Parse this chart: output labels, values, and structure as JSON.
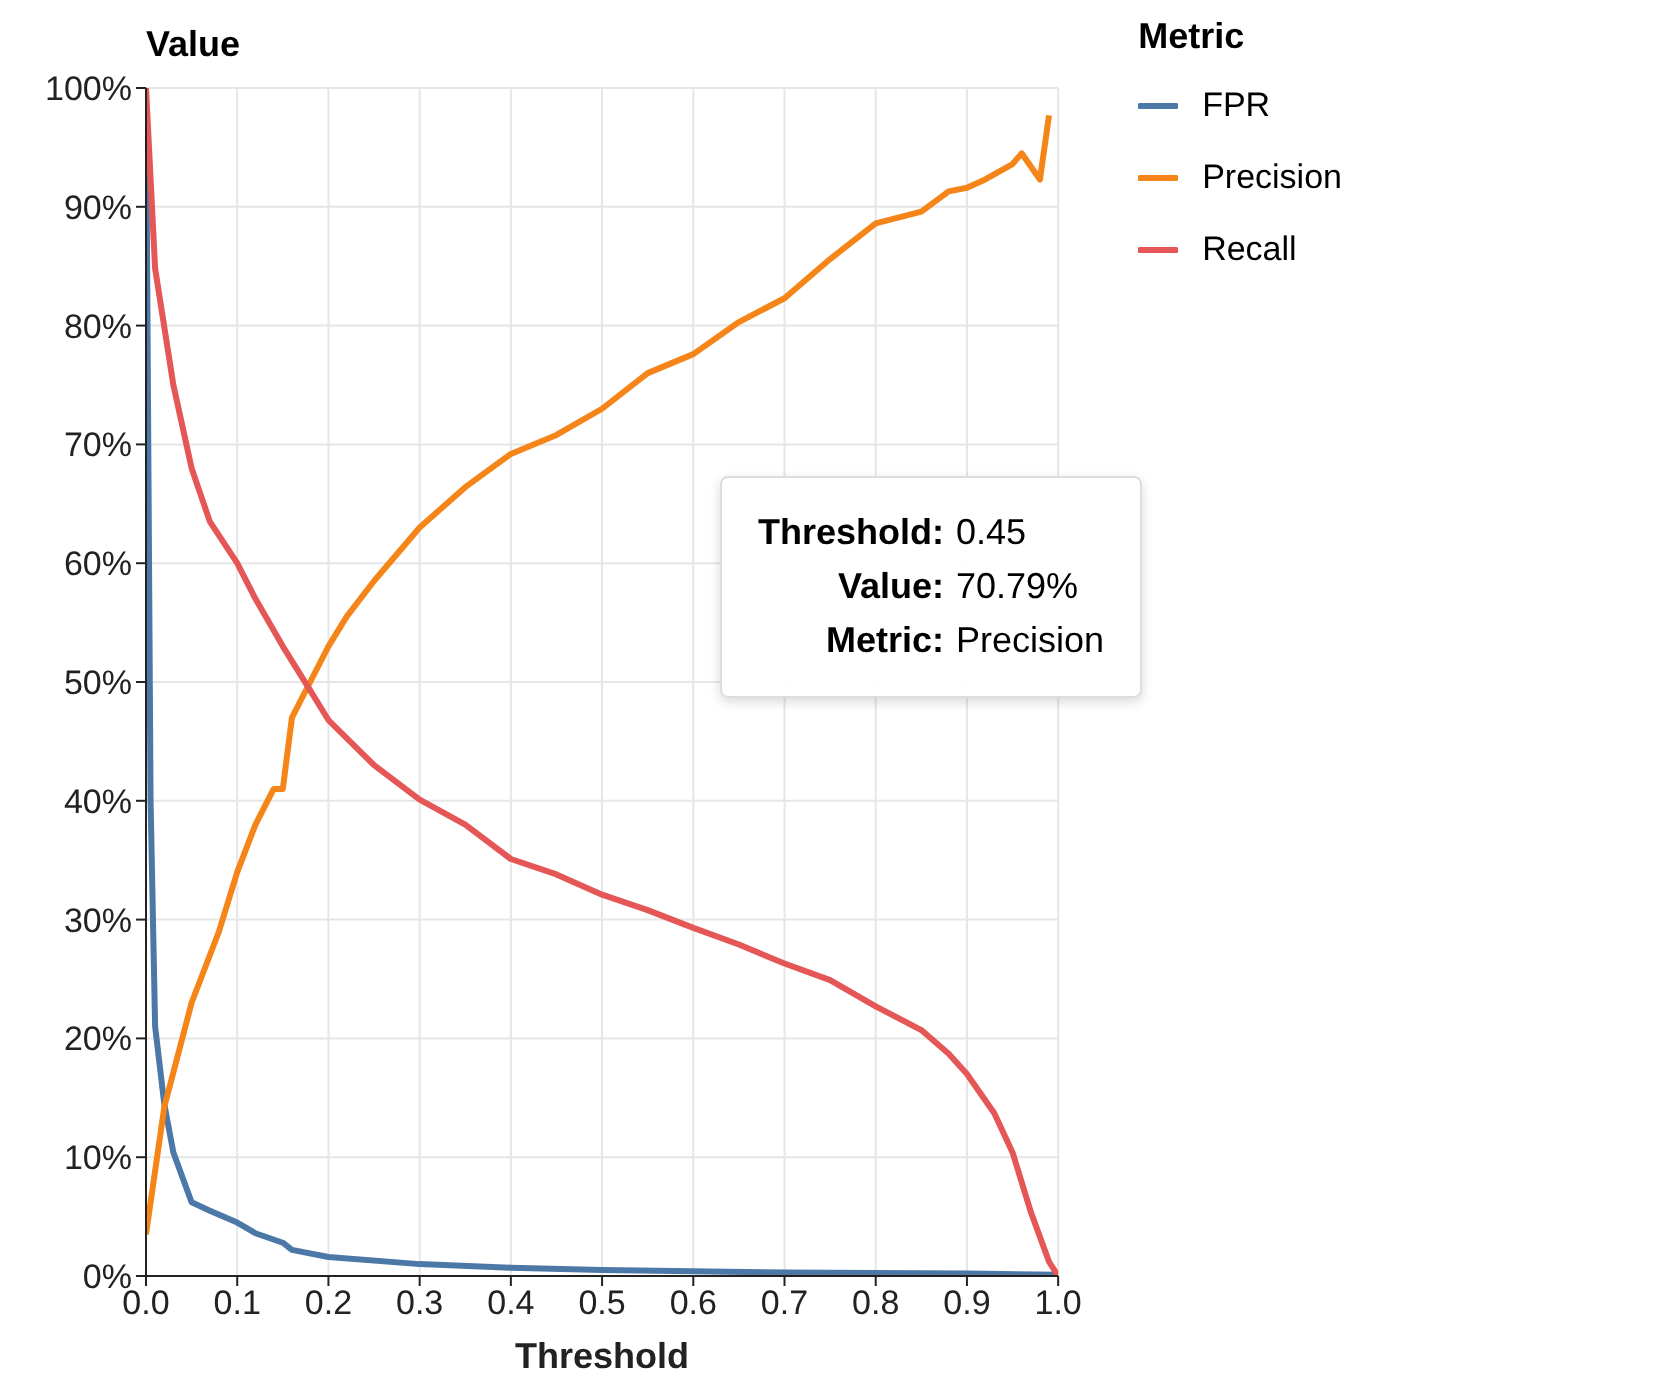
{
  "chart_data": {
    "type": "line",
    "xlabel": "Threshold",
    "ylabel": "Value",
    "legend_title": "Metric",
    "legend": "top right",
    "grid": true,
    "marker": "none",
    "line_style": "solid",
    "xlim": [
      0,
      1
    ],
    "ylim": [
      0,
      100
    ],
    "xticks": [
      {
        "value": 0,
        "label": "0.0"
      },
      {
        "value": 0.1,
        "label": "0.1"
      },
      {
        "value": 0.2,
        "label": "0.2"
      },
      {
        "value": 0.3,
        "label": "0.3"
      },
      {
        "value": 0.4,
        "label": "0.4"
      },
      {
        "value": 0.5,
        "label": "0.5"
      },
      {
        "value": 0.6,
        "label": "0.6"
      },
      {
        "value": 0.7,
        "label": "0.7"
      },
      {
        "value": 0.8,
        "label": "0.8"
      },
      {
        "value": 0.9,
        "label": "0.9"
      },
      {
        "value": 1,
        "label": "1.0"
      }
    ],
    "yticks": [
      {
        "value": 0,
        "label": "0%"
      },
      {
        "value": 10,
        "label": "10%"
      },
      {
        "value": 20,
        "label": "20%"
      },
      {
        "value": 30,
        "label": "30%"
      },
      {
        "value": 40,
        "label": "40%"
      },
      {
        "value": 50,
        "label": "50%"
      },
      {
        "value": 60,
        "label": "60%"
      },
      {
        "value": 70,
        "label": "70%"
      },
      {
        "value": 80,
        "label": "80%"
      },
      {
        "value": 90,
        "label": "90%"
      },
      {
        "value": 100,
        "label": "100%"
      }
    ],
    "series": [
      {
        "name": "FPR",
        "color": "#4c78a8",
        "x": [
          0,
          0.005,
          0.01,
          0.02,
          0.03,
          0.05,
          0.07,
          0.1,
          0.12,
          0.15,
          0.16,
          0.2,
          0.3,
          0.4,
          0.5,
          0.7,
          0.9,
          1
        ],
        "values": [
          100,
          40,
          21,
          14.5,
          10.4,
          6.2,
          5.5,
          4.5,
          3.6,
          2.8,
          2.2,
          1.6,
          1,
          0.7,
          0.5,
          0.3,
          0.2,
          0.1
        ]
      },
      {
        "name": "Precision",
        "color": "#f58518",
        "x": [
          0,
          0.02,
          0.05,
          0.08,
          0.1,
          0.12,
          0.14,
          0.15,
          0.16,
          0.18,
          0.2,
          0.22,
          0.25,
          0.3,
          0.35,
          0.4,
          0.45,
          0.5,
          0.55,
          0.6,
          0.65,
          0.7,
          0.75,
          0.8,
          0.85,
          0.88,
          0.9,
          0.92,
          0.95,
          0.96,
          0.98,
          0.99
        ],
        "values": [
          3.5,
          14.2,
          23,
          29,
          34,
          38,
          41,
          41,
          47,
          50,
          53,
          55.5,
          58.5,
          63,
          66.4,
          69.2,
          70.8,
          73,
          76,
          77.6,
          80.3,
          82.3,
          85.6,
          88.6,
          89.6,
          91.3,
          91.6,
          92.3,
          93.6,
          94.5,
          92.3,
          97.7
        ]
      },
      {
        "name": "Recall",
        "color": "#e45756",
        "x": [
          0,
          0.01,
          0.03,
          0.05,
          0.07,
          0.1,
          0.12,
          0.15,
          0.18,
          0.2,
          0.25,
          0.3,
          0.35,
          0.4,
          0.45,
          0.5,
          0.55,
          0.6,
          0.65,
          0.7,
          0.75,
          0.8,
          0.85,
          0.88,
          0.9,
          0.93,
          0.95,
          0.97,
          0.99,
          1
        ],
        "values": [
          100,
          84.8,
          75,
          68,
          63.5,
          60,
          57,
          53,
          49.3,
          46.8,
          43,
          40.1,
          38,
          35.1,
          33.8,
          32.1,
          30.8,
          29.3,
          27.9,
          26.3,
          24.9,
          22.7,
          20.7,
          18.7,
          17,
          13.7,
          10.4,
          5.4,
          1.2,
          0
        ]
      }
    ],
    "annotations": [
      "Threshold:",
      "0.45",
      "Value:",
      "70.79%",
      "Metric:",
      "Precision"
    ]
  }
}
